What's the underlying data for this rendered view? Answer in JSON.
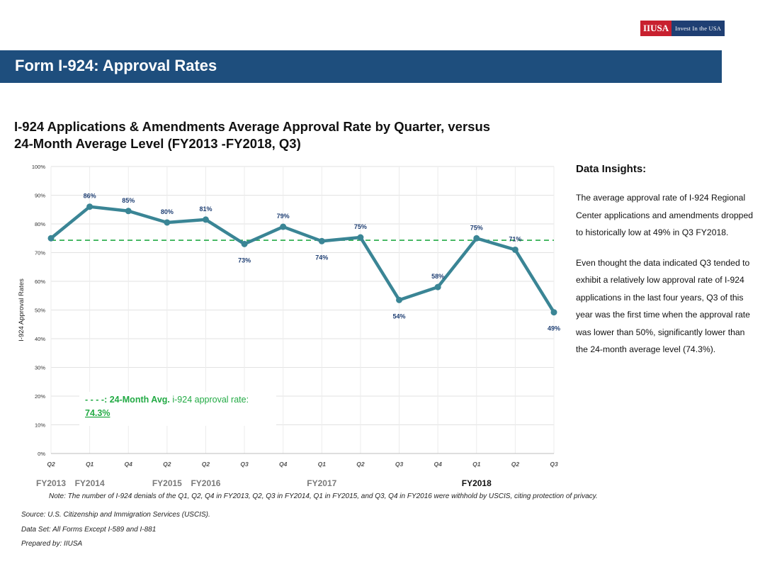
{
  "logo": {
    "mark": "IIUSA",
    "tagline": "Invest In the USA"
  },
  "banner": {
    "title": "Form I-924: Approval Rates"
  },
  "chart_title_lines": [
    "I-924 Applications & Amendments Average Approval Rate by Quarter, versus",
    "24-Month Average Level (FY2013 -FY2018, Q3)"
  ],
  "chart_data": {
    "type": "line",
    "title": "I-924 Applications & Amendments Average Approval Rate by Quarter, versus 24-Month Average Level (FY2013 -FY2018, Q3)",
    "ylabel": "I-924 Approval Rates",
    "xlabel": "",
    "ylim": [
      0,
      100
    ],
    "yticks": [
      "0%",
      "10%",
      "20%",
      "30%",
      "40%",
      "50%",
      "60%",
      "70%",
      "80%",
      "90%",
      "100%"
    ],
    "grid": true,
    "categories": [
      "Q2",
      "Q1",
      "Q4",
      "Q2",
      "Q2",
      "Q3",
      "Q4",
      "Q1",
      "Q2",
      "Q3",
      "Q4",
      "Q1",
      "Q2",
      "Q3"
    ],
    "fiscal_year_labels": [
      {
        "index": 0,
        "label": "FY2013",
        "bold": false
      },
      {
        "index": 1,
        "label": "FY2014",
        "bold": false
      },
      {
        "index": 3,
        "label": "FY2015",
        "bold": false
      },
      {
        "index": 4,
        "label": "FY2016",
        "bold": false
      },
      {
        "index": 7,
        "label": "FY2017",
        "bold": false
      },
      {
        "index": 11,
        "label": "FY2018",
        "bold": true
      }
    ],
    "series": [
      {
        "values": [
          75,
          86,
          84.5,
          80.5,
          81.5,
          73,
          79,
          74,
          75.3,
          53.5,
          58,
          75,
          71,
          49.2
        ],
        "data_labels": [
          "",
          "86%",
          "85%",
          "80%",
          "81%",
          "73%",
          "79%",
          "74%",
          "75%",
          "54%",
          "58%",
          "75%",
          "71%",
          "49%"
        ],
        "color": "#3a8595"
      }
    ],
    "reference_line": {
      "value": 74.3,
      "color": "#22aa44",
      "legend_marker": "- - - -:",
      "legend_bold": "24-Month Avg.",
      "legend_rest": "i-924 approval rate:",
      "legend_value": "74.3%"
    },
    "label_color": "#1f3f73"
  },
  "insights": {
    "title": "Data Insights:",
    "paragraphs": [
      "The average approval rate of I-924 Regional Center applications and amendments dropped to historically low at 49% in Q3 FY2018.",
      "Even thought the data indicated Q3 tended to exhibit a relatively low approval rate of I-924 applications in the last four years, Q3 of this year was the first time when the approval rate was lower than 50%, significantly lower than the 24-month average level (74.3%)."
    ]
  },
  "footer": {
    "note": "Note: The number of I-924 denials of the Q1, Q2, Q4 in FY2013, Q2, Q3 in FY2014, Q1 in FY2015, and Q3, Q4 in FY2016 were withhold by USCIS, citing protection of privacy.",
    "source": "Source: U.S. Citizenship and Immigration Services (USCIS).",
    "dataset": "Data Set: All Forms Except I-589 and I-881",
    "prepared": "Prepared by: IIUSA"
  }
}
